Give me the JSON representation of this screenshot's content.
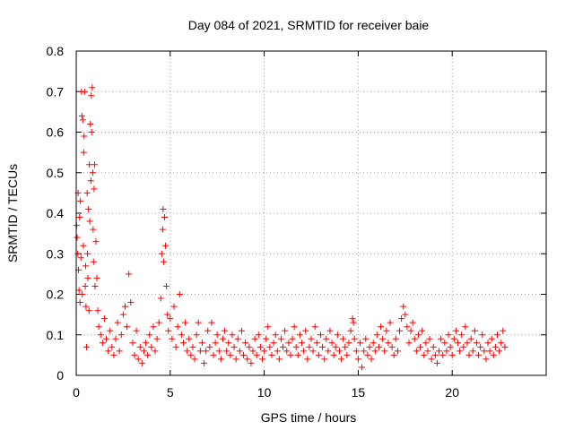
{
  "chart_data": {
    "type": "scatter",
    "title": "Day 084 of 2021, SRMTID for receiver baie",
    "xlabel": "GPS time / hours",
    "ylabel": "SRMTID / TECUs",
    "xlim": [
      0,
      25
    ],
    "ylim": [
      0,
      0.8
    ],
    "xticks": [
      "0",
      "5",
      "10",
      "15",
      "20"
    ],
    "yticks": [
      "0",
      "0.1",
      "0.2",
      "0.3",
      "0.4",
      "0.5",
      "0.6",
      "0.7",
      "0.8"
    ],
    "grid": true,
    "marker": "plus",
    "color": "#ff0000",
    "series": [
      {
        "name": "baie",
        "points": [
          [
            0.02,
            0.37
          ],
          [
            0.05,
            0.34
          ],
          [
            0.08,
            0.3
          ],
          [
            0.1,
            0.45
          ],
          [
            0.12,
            0.26
          ],
          [
            0.15,
            0.21
          ],
          [
            0.18,
            0.39
          ],
          [
            0.2,
            0.18
          ],
          [
            0.22,
            0.43
          ],
          [
            0.25,
            0.29
          ],
          [
            0.28,
            0.7
          ],
          [
            0.3,
            0.64
          ],
          [
            0.32,
            0.2
          ],
          [
            0.35,
            0.63
          ],
          [
            0.38,
            0.32
          ],
          [
            0.4,
            0.55
          ],
          [
            0.42,
            0.59
          ],
          [
            0.45,
            0.7
          ],
          [
            0.48,
            0.22
          ],
          [
            0.5,
            0.27
          ],
          [
            0.52,
            0.17
          ],
          [
            0.55,
            0.07
          ],
          [
            0.58,
            0.45
          ],
          [
            0.6,
            0.3
          ],
          [
            0.62,
            0.24
          ],
          [
            0.65,
            0.41
          ],
          [
            0.68,
            0.16
          ],
          [
            0.7,
            0.52
          ],
          [
            0.72,
            0.38
          ],
          [
            0.75,
            0.62
          ],
          [
            0.78,
            0.48
          ],
          [
            0.8,
            0.69
          ],
          [
            0.82,
            0.6
          ],
          [
            0.85,
            0.71
          ],
          [
            0.88,
            0.5
          ],
          [
            0.9,
            0.36
          ],
          [
            0.92,
            0.28
          ],
          [
            0.95,
            0.46
          ],
          [
            0.98,
            0.52
          ],
          [
            1.0,
            0.22
          ],
          [
            1.05,
            0.33
          ],
          [
            1.1,
            0.24
          ],
          [
            1.15,
            0.16
          ],
          [
            1.2,
            0.12
          ],
          [
            1.3,
            0.1
          ],
          [
            1.4,
            0.08
          ],
          [
            1.5,
            0.14
          ],
          [
            1.6,
            0.09
          ],
          [
            1.7,
            0.06
          ],
          [
            1.8,
            0.11
          ],
          [
            1.9,
            0.07
          ],
          [
            2.0,
            0.05
          ],
          [
            2.1,
            0.09
          ],
          [
            2.2,
            0.13
          ],
          [
            2.3,
            0.06
          ],
          [
            2.4,
            0.1
          ],
          [
            2.5,
            0.15
          ],
          [
            2.6,
            0.17
          ],
          [
            2.7,
            0.12
          ],
          [
            2.8,
            0.25
          ],
          [
            2.9,
            0.18
          ],
          [
            3.0,
            0.08
          ],
          [
            3.1,
            0.05
          ],
          [
            3.2,
            0.11
          ],
          [
            3.3,
            0.04
          ],
          [
            3.4,
            0.07
          ],
          [
            3.5,
            0.03
          ],
          [
            3.6,
            0.06
          ],
          [
            3.7,
            0.08
          ],
          [
            3.8,
            0.05
          ],
          [
            3.9,
            0.1
          ],
          [
            4.0,
            0.07
          ],
          [
            4.1,
            0.12
          ],
          [
            4.2,
            0.06
          ],
          [
            4.3,
            0.09
          ],
          [
            4.4,
            0.13
          ],
          [
            4.5,
            0.19
          ],
          [
            4.55,
            0.3
          ],
          [
            4.6,
            0.36
          ],
          [
            4.62,
            0.41
          ],
          [
            4.65,
            0.28
          ],
          [
            4.7,
            0.39
          ],
          [
            4.75,
            0.32
          ],
          [
            4.8,
            0.22
          ],
          [
            4.85,
            0.15
          ],
          [
            4.9,
            0.11
          ],
          [
            5.0,
            0.14
          ],
          [
            5.1,
            0.09
          ],
          [
            5.2,
            0.17
          ],
          [
            5.3,
            0.07
          ],
          [
            5.4,
            0.12
          ],
          [
            5.5,
            0.2
          ],
          [
            5.6,
            0.1
          ],
          [
            5.7,
            0.08
          ],
          [
            5.8,
            0.13
          ],
          [
            5.9,
            0.06
          ],
          [
            6.0,
            0.09
          ],
          [
            6.1,
            0.05
          ],
          [
            6.2,
            0.07
          ],
          [
            6.3,
            0.04
          ],
          [
            6.4,
            0.1
          ],
          [
            6.5,
            0.13
          ],
          [
            6.6,
            0.06
          ],
          [
            6.7,
            0.08
          ],
          [
            6.8,
            0.03
          ],
          [
            6.9,
            0.06
          ],
          [
            7.0,
            0.11
          ],
          [
            7.1,
            0.07
          ],
          [
            7.2,
            0.13
          ],
          [
            7.3,
            0.05
          ],
          [
            7.4,
            0.08
          ],
          [
            7.5,
            0.1
          ],
          [
            7.6,
            0.06
          ],
          [
            7.7,
            0.04
          ],
          [
            7.8,
            0.09
          ],
          [
            7.9,
            0.11
          ],
          [
            8.0,
            0.06
          ],
          [
            8.1,
            0.08
          ],
          [
            8.2,
            0.05
          ],
          [
            8.3,
            0.1
          ],
          [
            8.4,
            0.07
          ],
          [
            8.5,
            0.04
          ],
          [
            8.6,
            0.09
          ],
          [
            8.7,
            0.06
          ],
          [
            8.8,
            0.11
          ],
          [
            8.9,
            0.05
          ],
          [
            9.0,
            0.08
          ],
          [
            9.1,
            0.04
          ],
          [
            9.2,
            0.07
          ],
          [
            9.3,
            0.03
          ],
          [
            9.4,
            0.06
          ],
          [
            9.5,
            0.09
          ],
          [
            9.6,
            0.05
          ],
          [
            9.7,
            0.1
          ],
          [
            9.8,
            0.07
          ],
          [
            9.9,
            0.04
          ],
          [
            10.0,
            0.06
          ],
          [
            10.1,
            0.09
          ],
          [
            10.2,
            0.12
          ],
          [
            10.3,
            0.07
          ],
          [
            10.4,
            0.05
          ],
          [
            10.5,
            0.08
          ],
          [
            10.6,
            0.1
          ],
          [
            10.7,
            0.06
          ],
          [
            10.8,
            0.04
          ],
          [
            10.9,
            0.09
          ],
          [
            11.0,
            0.07
          ],
          [
            11.1,
            0.11
          ],
          [
            11.2,
            0.06
          ],
          [
            11.3,
            0.08
          ],
          [
            11.4,
            0.05
          ],
          [
            11.5,
            0.09
          ],
          [
            11.6,
            0.12
          ],
          [
            11.7,
            0.07
          ],
          [
            11.8,
            0.05
          ],
          [
            11.9,
            0.1
          ],
          [
            12.0,
            0.08
          ],
          [
            12.1,
            0.06
          ],
          [
            12.2,
            0.11
          ],
          [
            12.3,
            0.04
          ],
          [
            12.4,
            0.07
          ],
          [
            12.5,
            0.09
          ],
          [
            12.6,
            0.06
          ],
          [
            12.7,
            0.12
          ],
          [
            12.8,
            0.08
          ],
          [
            12.9,
            0.05
          ],
          [
            13.0,
            0.1
          ],
          [
            13.1,
            0.07
          ],
          [
            13.2,
            0.04
          ],
          [
            13.3,
            0.09
          ],
          [
            13.4,
            0.06
          ],
          [
            13.5,
            0.11
          ],
          [
            13.6,
            0.08
          ],
          [
            13.7,
            0.05
          ],
          [
            13.8,
            0.07
          ],
          [
            13.9,
            0.1
          ],
          [
            14.0,
            0.06
          ],
          [
            14.1,
            0.04
          ],
          [
            14.2,
            0.09
          ],
          [
            14.3,
            0.07
          ],
          [
            14.4,
            0.05
          ],
          [
            14.5,
            0.08
          ],
          [
            14.6,
            0.11
          ],
          [
            14.7,
            0.14
          ],
          [
            14.75,
            0.13
          ],
          [
            14.8,
            0.09
          ],
          [
            14.9,
            0.06
          ],
          [
            15.0,
            0.04
          ],
          [
            15.1,
            0.08
          ],
          [
            15.2,
            0.02
          ],
          [
            15.3,
            0.06
          ],
          [
            15.4,
            0.09
          ],
          [
            15.5,
            0.05
          ],
          [
            15.6,
            0.07
          ],
          [
            15.7,
            0.04
          ],
          [
            15.8,
            0.08
          ],
          [
            15.9,
            0.06
          ],
          [
            16.0,
            0.1
          ],
          [
            16.1,
            0.07
          ],
          [
            16.2,
            0.12
          ],
          [
            16.3,
            0.09
          ],
          [
            16.4,
            0.06
          ],
          [
            16.5,
            0.11
          ],
          [
            16.6,
            0.08
          ],
          [
            16.7,
            0.13
          ],
          [
            16.8,
            0.07
          ],
          [
            16.9,
            0.05
          ],
          [
            17.0,
            0.09
          ],
          [
            17.1,
            0.06
          ],
          [
            17.2,
            0.11
          ],
          [
            17.3,
            0.14
          ],
          [
            17.4,
            0.17
          ],
          [
            17.5,
            0.15
          ],
          [
            17.6,
            0.12
          ],
          [
            17.7,
            0.08
          ],
          [
            17.8,
            0.11
          ],
          [
            17.9,
            0.13
          ],
          [
            18.0,
            0.09
          ],
          [
            18.1,
            0.06
          ],
          [
            18.2,
            0.1
          ],
          [
            18.3,
            0.07
          ],
          [
            18.4,
            0.11
          ],
          [
            18.5,
            0.05
          ],
          [
            18.6,
            0.08
          ],
          [
            18.7,
            0.06
          ],
          [
            18.8,
            0.09
          ],
          [
            18.9,
            0.04
          ],
          [
            19.0,
            0.07
          ],
          [
            19.1,
            0.05
          ],
          [
            19.2,
            0.03
          ],
          [
            19.3,
            0.06
          ],
          [
            19.4,
            0.09
          ],
          [
            19.5,
            0.05
          ],
          [
            19.6,
            0.08
          ],
          [
            19.7,
            0.06
          ],
          [
            19.8,
            0.1
          ],
          [
            19.9,
            0.07
          ],
          [
            20.0,
            0.05
          ],
          [
            20.1,
            0.09
          ],
          [
            20.2,
            0.11
          ],
          [
            20.3,
            0.08
          ],
          [
            20.4,
            0.06
          ],
          [
            20.5,
            0.1
          ],
          [
            20.6,
            0.07
          ],
          [
            20.7,
            0.12
          ],
          [
            20.8,
            0.08
          ],
          [
            20.9,
            0.05
          ],
          [
            21.0,
            0.09
          ],
          [
            21.1,
            0.06
          ],
          [
            21.2,
            0.11
          ],
          [
            21.3,
            0.08
          ],
          [
            21.4,
            0.05
          ],
          [
            21.5,
            0.07
          ],
          [
            21.6,
            0.1
          ],
          [
            21.7,
            0.06
          ],
          [
            21.8,
            0.04
          ],
          [
            21.9,
            0.08
          ],
          [
            22.0,
            0.06
          ],
          [
            22.1,
            0.09
          ],
          [
            22.2,
            0.05
          ],
          [
            22.3,
            0.07
          ],
          [
            22.4,
            0.1
          ],
          [
            22.5,
            0.06
          ],
          [
            22.6,
            0.08
          ],
          [
            22.7,
            0.11
          ],
          [
            22.8,
            0.07
          ]
        ]
      }
    ]
  }
}
